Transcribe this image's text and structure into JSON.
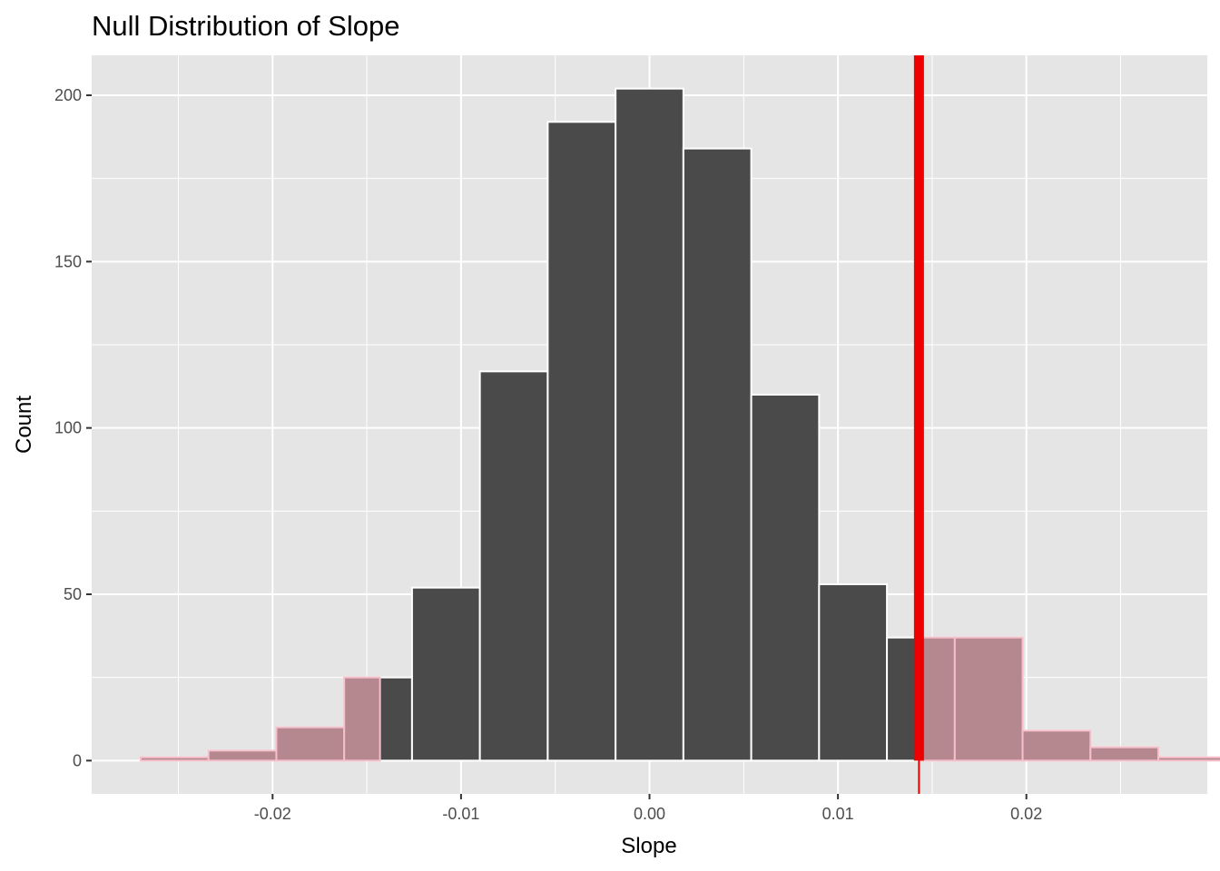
{
  "chart_data": {
    "type": "bar",
    "title": "Null Distribution of Slope",
    "xlabel": "Slope",
    "ylabel": "Count",
    "xlim": [
      -0.0296,
      0.0296
    ],
    "ylim": [
      -10,
      212
    ],
    "x_ticks": [
      -0.02,
      -0.01,
      0.0,
      0.01,
      0.02
    ],
    "x_tick_labels": [
      "-0.02",
      "-0.01",
      "0.00",
      "0.01",
      "0.02"
    ],
    "y_ticks": [
      0,
      50,
      100,
      150,
      200
    ],
    "y_tick_labels": [
      "0",
      "50",
      "100",
      "150",
      "200"
    ],
    "grid": true,
    "bin_width": 0.0036,
    "bins": [
      {
        "center": -0.0252,
        "count": 1,
        "shaded": true
      },
      {
        "center": -0.0216,
        "count": 3,
        "shaded": true
      },
      {
        "center": -0.018,
        "count": 10,
        "shaded": true
      },
      {
        "center": -0.0144,
        "count": 25,
        "shaded": true
      },
      {
        "center": -0.0108,
        "count": 52,
        "shaded": false
      },
      {
        "center": -0.0072,
        "count": 117,
        "shaded": false
      },
      {
        "center": -0.0036,
        "count": 192,
        "shaded": false
      },
      {
        "center": 0.0,
        "count": 202,
        "shaded": false
      },
      {
        "center": 0.0036,
        "count": 184,
        "shaded": false
      },
      {
        "center": 0.0072,
        "count": 110,
        "shaded": false
      },
      {
        "center": 0.0108,
        "count": 53,
        "shaded": false
      },
      {
        "center": 0.0144,
        "count": 37,
        "shaded": false
      },
      {
        "center": 0.018,
        "count": 37,
        "shaded": true
      },
      {
        "center": 0.0216,
        "count": 9,
        "shaded": true
      },
      {
        "center": 0.0252,
        "count": 4,
        "shaded": true
      },
      {
        "center": 0.0288,
        "count": 1,
        "shaded": true
      }
    ],
    "shade_region": {
      "lower_x": -0.0143,
      "upper_x": 0.0143
    },
    "observed_line_x": 0.0143,
    "colors": {
      "panel_background": "#e5e5e5",
      "grid": "#ffffff",
      "bar_fill": "#4a4a4a",
      "bar_outline": "#ffffff",
      "shaded_fill": "#b5878f",
      "shaded_outline": "#f5c0cb",
      "observed_line": "#ee0000",
      "tick_text": "#4d4d4d",
      "title_text": "#000000"
    }
  }
}
